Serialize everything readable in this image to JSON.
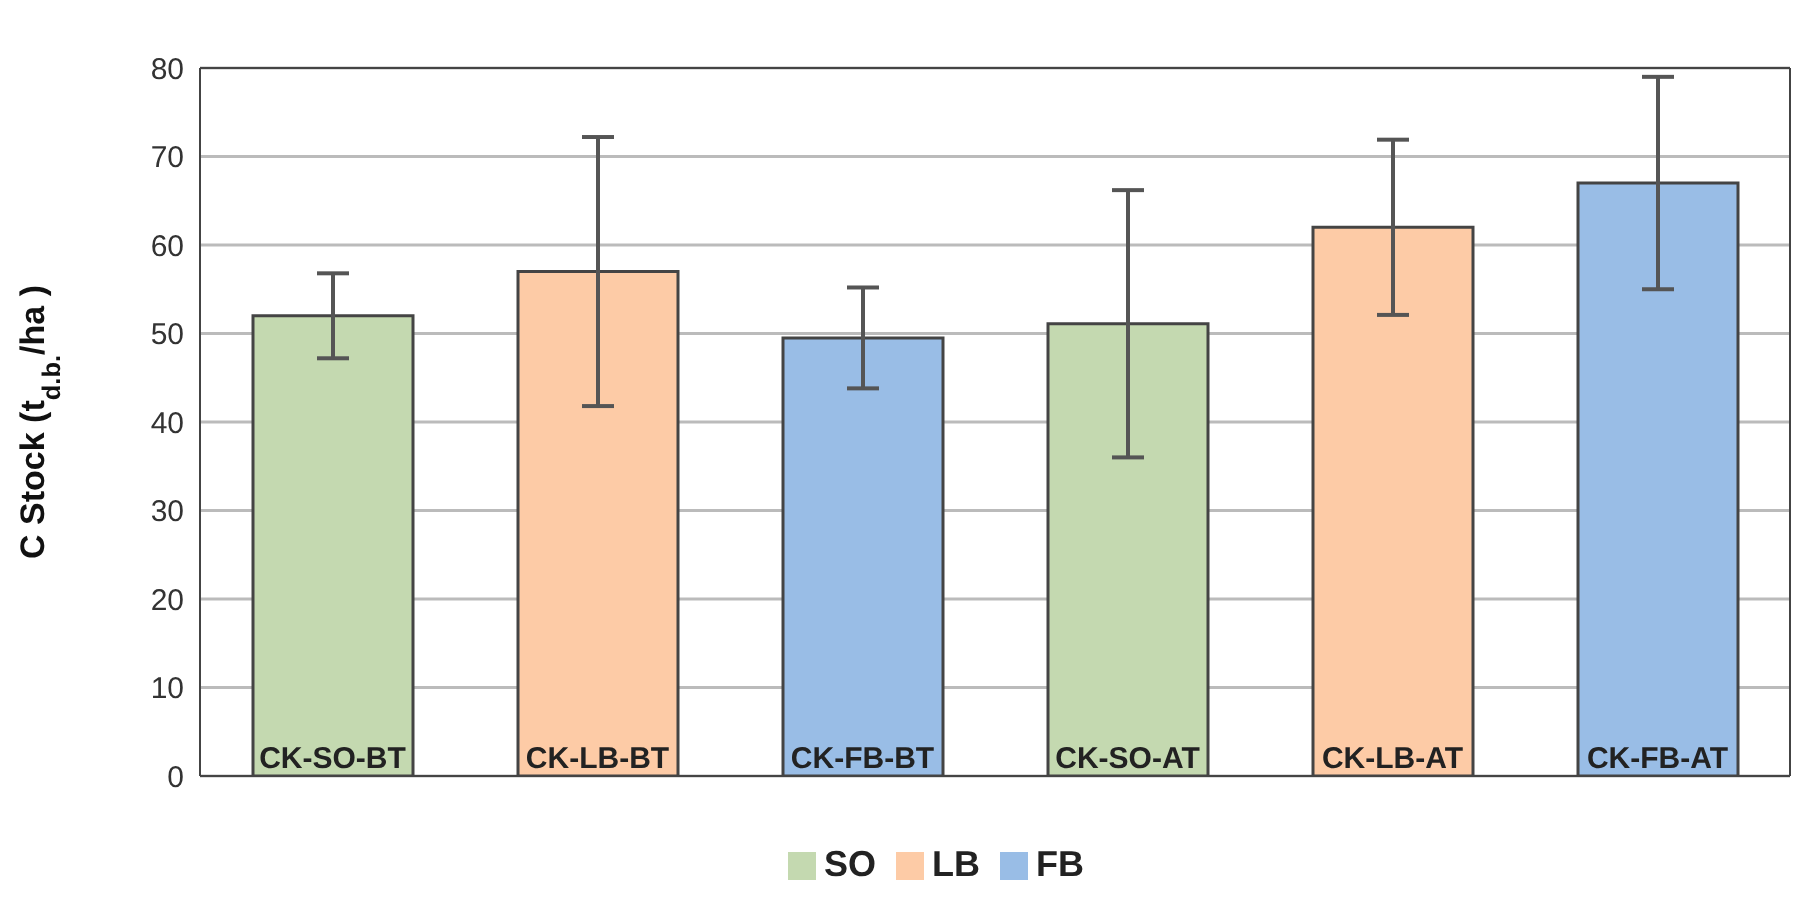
{
  "chart_data": {
    "type": "bar",
    "ylabel": "C Stock (t$_{d.b.}$/ha )",
    "categories": [
      "CK-SO-BT",
      "CK-LB-BT",
      "CK-FB-BT",
      "CK-SO-AT",
      "CK-LB-AT",
      "CK-FB-AT"
    ],
    "stacked": true,
    "series": [
      {
        "name": "SO",
        "color": "#c4d9b0",
        "values": [
          52,
          null,
          null,
          51.1,
          null,
          null
        ],
        "errors": [
          4.8,
          null,
          null,
          15.1,
          null,
          null
        ]
      },
      {
        "name": "LB",
        "color": "#fdcba6",
        "values": [
          null,
          57,
          null,
          null,
          62,
          null
        ],
        "errors": [
          null,
          15.2,
          null,
          null,
          9.9,
          null
        ]
      },
      {
        "name": "FB",
        "color": "#99bde6",
        "values": [
          null,
          null,
          49.5,
          null,
          null,
          67
        ],
        "errors": [
          null,
          null,
          5.7,
          null,
          null,
          12
        ]
      }
    ],
    "ylim": [
      0,
      80
    ],
    "yticks": [
      0,
      10,
      20,
      30,
      40,
      50,
      60,
      70,
      80
    ],
    "grid": "y",
    "legend": "bottom"
  }
}
